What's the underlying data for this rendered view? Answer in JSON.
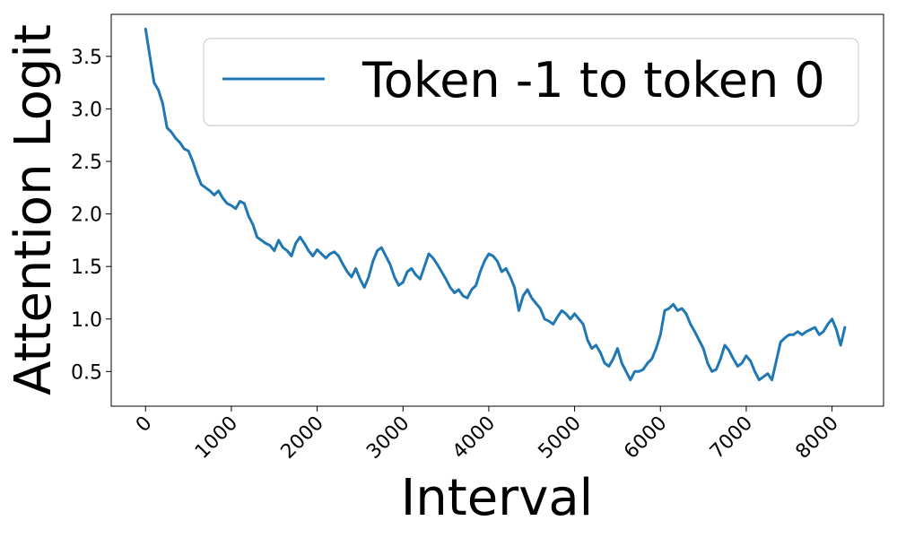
{
  "chart_data": {
    "type": "line",
    "xlabel": "Interval",
    "ylabel": "Attention Logit",
    "xlim": [
      -400,
      8600
    ],
    "ylim": [
      0.17,
      3.9
    ],
    "xticks": [
      0,
      1000,
      2000,
      3000,
      4000,
      5000,
      6000,
      7000,
      8000
    ],
    "yticks": [
      0.5,
      1.0,
      1.5,
      2.0,
      2.5,
      3.0,
      3.5
    ],
    "xtick_labels": [
      "0",
      "1000",
      "2000",
      "3000",
      "4000",
      "5000",
      "6000",
      "7000",
      "8000"
    ],
    "ytick_labels": [
      "0.5",
      "1.0",
      "1.5",
      "2.0",
      "2.5",
      "3.0",
      "3.5"
    ],
    "grid": false,
    "legend_position": "top-right",
    "series": [
      {
        "name": "Token -1 to token 0",
        "color": "#1f77b4",
        "x": [
          0,
          50,
          100,
          150,
          200,
          250,
          300,
          350,
          400,
          450,
          500,
          550,
          600,
          650,
          700,
          750,
          800,
          850,
          900,
          950,
          1000,
          1050,
          1100,
          1150,
          1200,
          1250,
          1300,
          1350,
          1400,
          1450,
          1500,
          1550,
          1600,
          1650,
          1700,
          1750,
          1800,
          1850,
          1900,
          1950,
          2000,
          2050,
          2100,
          2150,
          2200,
          2250,
          2300,
          2350,
          2400,
          2450,
          2500,
          2550,
          2600,
          2650,
          2700,
          2750,
          2800,
          2850,
          2900,
          2950,
          3000,
          3050,
          3100,
          3150,
          3200,
          3250,
          3300,
          3350,
          3400,
          3450,
          3500,
          3550,
          3600,
          3650,
          3700,
          3750,
          3800,
          3850,
          3900,
          3950,
          4000,
          4050,
          4100,
          4150,
          4200,
          4250,
          4300,
          4350,
          4400,
          4450,
          4500,
          4550,
          4600,
          4650,
          4700,
          4750,
          4800,
          4850,
          4900,
          4950,
          5000,
          5050,
          5100,
          5150,
          5200,
          5250,
          5300,
          5350,
          5400,
          5450,
          5500,
          5550,
          5600,
          5650,
          5700,
          5750,
          5800,
          5850,
          5900,
          5950,
          6000,
          6050,
          6100,
          6150,
          6200,
          6250,
          6300,
          6350,
          6400,
          6450,
          6500,
          6550,
          6600,
          6650,
          6700,
          6750,
          6800,
          6850,
          6900,
          6950,
          7000,
          7050,
          7100,
          7150,
          7200,
          7250,
          7300,
          7350,
          7400,
          7450,
          7500,
          7550,
          7600,
          7650,
          7700,
          7750,
          7800,
          7850,
          7900,
          7950,
          8000,
          8050,
          8100,
          8150
        ],
        "y": [
          3.76,
          3.5,
          3.25,
          3.18,
          3.05,
          2.82,
          2.78,
          2.72,
          2.68,
          2.62,
          2.6,
          2.5,
          2.38,
          2.28,
          2.25,
          2.22,
          2.18,
          2.22,
          2.15,
          2.1,
          2.08,
          2.05,
          2.12,
          2.1,
          1.98,
          1.9,
          1.78,
          1.75,
          1.72,
          1.7,
          1.65,
          1.75,
          1.68,
          1.65,
          1.6,
          1.72,
          1.78,
          1.72,
          1.65,
          1.6,
          1.66,
          1.62,
          1.58,
          1.62,
          1.64,
          1.6,
          1.52,
          1.45,
          1.4,
          1.48,
          1.38,
          1.3,
          1.4,
          1.55,
          1.65,
          1.68,
          1.6,
          1.52,
          1.4,
          1.32,
          1.35,
          1.45,
          1.48,
          1.42,
          1.38,
          1.5,
          1.62,
          1.58,
          1.52,
          1.45,
          1.38,
          1.3,
          1.25,
          1.28,
          1.22,
          1.2,
          1.28,
          1.32,
          1.45,
          1.55,
          1.62,
          1.6,
          1.55,
          1.45,
          1.48,
          1.4,
          1.3,
          1.08,
          1.22,
          1.28,
          1.2,
          1.15,
          1.1,
          1.0,
          0.98,
          0.95,
          1.02,
          1.08,
          1.05,
          1.0,
          1.05,
          1.0,
          0.95,
          0.8,
          0.72,
          0.75,
          0.68,
          0.58,
          0.55,
          0.62,
          0.72,
          0.58,
          0.5,
          0.42,
          0.5,
          0.5,
          0.52,
          0.58,
          0.62,
          0.72,
          0.85,
          1.08,
          1.1,
          1.14,
          1.08,
          1.1,
          1.05,
          0.95,
          0.88,
          0.8,
          0.72,
          0.58,
          0.5,
          0.52,
          0.62,
          0.75,
          0.7,
          0.62,
          0.55,
          0.58,
          0.65,
          0.6,
          0.5,
          0.42,
          0.45,
          0.48,
          0.42,
          0.6,
          0.78,
          0.82,
          0.85,
          0.85,
          0.88,
          0.85,
          0.88,
          0.9,
          0.92,
          0.85,
          0.88,
          0.95,
          1.0,
          0.9,
          0.75,
          0.92
        ]
      }
    ]
  }
}
